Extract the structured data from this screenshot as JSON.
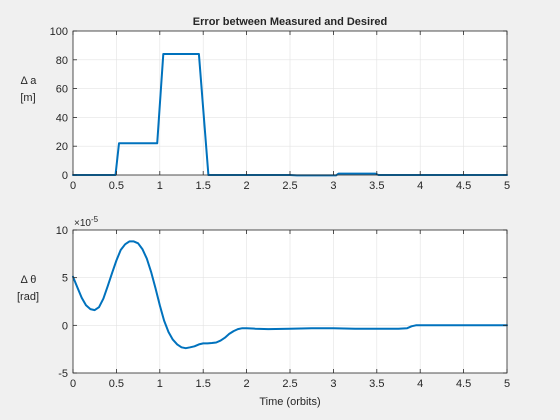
{
  "figure": {
    "background": "#f0f0f0",
    "axes_background": "#ffffff",
    "axes_color": "#262626",
    "grid_color": "#e3e3e3",
    "line_color": "#0072bd"
  },
  "chart_data": [
    {
      "type": "line",
      "title": "Error between Measured and Desired",
      "ylabel_lines": [
        "Δ a",
        "[m]"
      ],
      "xlabel": "",
      "xlim": [
        0,
        5
      ],
      "ylim": [
        0,
        100
      ],
      "grid": true,
      "x_ticks": [
        0,
        0.5,
        1,
        1.5,
        2,
        2.5,
        3,
        3.5,
        4,
        4.5,
        5
      ],
      "x_tick_labels": [
        "0",
        "0.5",
        "1",
        "1.5",
        "2",
        "2.5",
        "3",
        "3.5",
        "4",
        "4.5",
        "5"
      ],
      "y_ticks": [
        0,
        20,
        40,
        60,
        80,
        100
      ],
      "y_tick_labels": [
        "0",
        "20",
        "40",
        "60",
        "80",
        "100"
      ],
      "series": [
        {
          "x": [
            0,
            0.49,
            0.53,
            0.97,
            1.04,
            1.45,
            1.56,
            2.5,
            2.58,
            3.03,
            3.06,
            3.48,
            3.52,
            5
          ],
          "y": [
            0,
            0,
            22,
            22,
            84,
            84,
            0,
            0,
            -0.3,
            -0.3,
            1,
            1,
            0,
            0
          ]
        }
      ]
    },
    {
      "type": "line",
      "title": "",
      "ylabel_lines": [
        "Δ θ",
        "[rad]"
      ],
      "xlabel": "Time (orbits)",
      "exponent_label": "×10",
      "exponent_value": "-5",
      "xlim": [
        0,
        5
      ],
      "ylim": [
        -5,
        10
      ],
      "grid": true,
      "x_ticks": [
        0,
        0.5,
        1,
        1.5,
        2,
        2.5,
        3,
        3.5,
        4,
        4.5,
        5
      ],
      "x_tick_labels": [
        "0",
        "0.5",
        "1",
        "1.5",
        "2",
        "2.5",
        "3",
        "3.5",
        "4",
        "4.5",
        "5"
      ],
      "y_ticks": [
        -5,
        0,
        5,
        10
      ],
      "y_tick_labels": [
        "-5",
        "0",
        "5",
        "10"
      ],
      "series": [
        {
          "x": [
            0,
            0.05,
            0.1,
            0.15,
            0.2,
            0.25,
            0.3,
            0.35,
            0.4,
            0.45,
            0.5,
            0.55,
            0.6,
            0.65,
            0.7,
            0.75,
            0.8,
            0.85,
            0.9,
            0.95,
            1.0,
            1.05,
            1.1,
            1.15,
            1.2,
            1.25,
            1.3,
            1.35,
            1.4,
            1.45,
            1.5,
            1.55,
            1.6,
            1.65,
            1.7,
            1.75,
            1.8,
            1.85,
            1.9,
            1.95,
            2.0,
            2.1,
            2.25,
            2.5,
            2.75,
            3.0,
            3.25,
            3.5,
            3.75,
            3.85,
            3.9,
            3.95,
            4.2,
            4.5,
            4.75,
            5.0
          ],
          "y": [
            5.1,
            4.0,
            2.9,
            2.1,
            1.7,
            1.6,
            1.9,
            2.8,
            4.1,
            5.5,
            6.8,
            7.9,
            8.5,
            8.8,
            8.8,
            8.6,
            8.0,
            7.0,
            5.6,
            3.9,
            2.1,
            0.5,
            -0.7,
            -1.5,
            -2.0,
            -2.3,
            -2.4,
            -2.3,
            -2.2,
            -2.0,
            -1.9,
            -1.9,
            -1.85,
            -1.8,
            -1.6,
            -1.3,
            -0.9,
            -0.6,
            -0.4,
            -0.3,
            -0.3,
            -0.35,
            -0.4,
            -0.35,
            -0.3,
            -0.3,
            -0.35,
            -0.35,
            -0.35,
            -0.3,
            -0.1,
            0.0,
            0.0,
            0.0,
            0.0,
            0.0
          ]
        }
      ]
    }
  ]
}
